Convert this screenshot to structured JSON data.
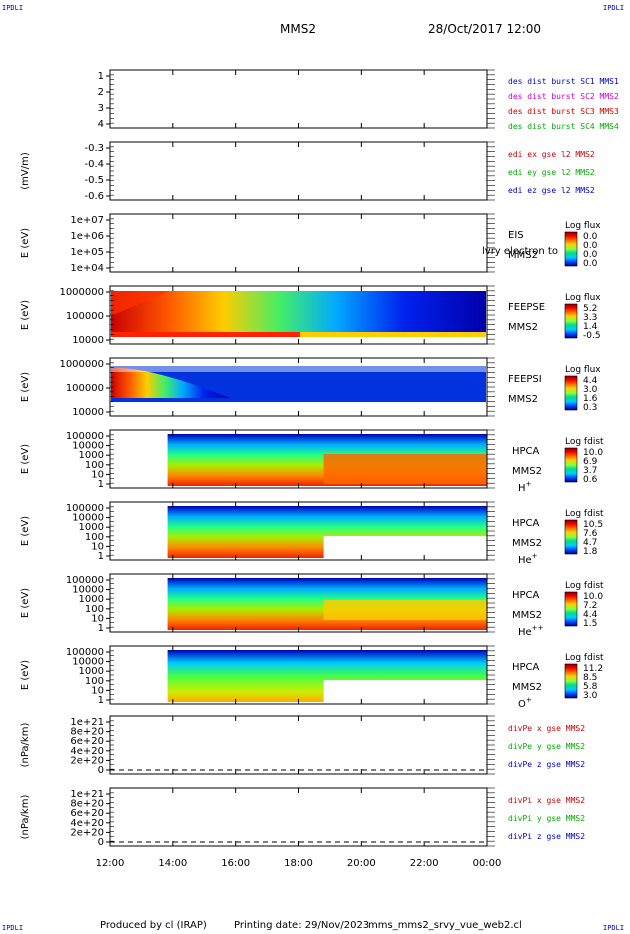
{
  "header": {
    "corner_tag": "IPDLI",
    "spacecraft": "MMS2",
    "datetime": "28/Oct/2017 12:00"
  },
  "footer": {
    "produced": "Produced by cl (IRAP)",
    "printing": "Printing date: 29/Nov/2023",
    "file": "mms_mms2_srvy_vue_web2.cl"
  },
  "chart_data": {
    "type": "heatmap",
    "x_ticks": [
      "12:00",
      "14:00",
      "16:00",
      "18:00",
      "20:00",
      "22:00",
      "00:00"
    ],
    "x_range": [
      "12:00",
      "00:00"
    ],
    "data_start": "13:50",
    "panels": [
      {
        "id": "burst",
        "type": "line",
        "ylabel": "",
        "yticks": [
          "1",
          "2",
          "3",
          "4"
        ],
        "ylim": [
          0.7,
          4.3
        ],
        "legend": [
          {
            "text": "des dist burst SC1 MMS1",
            "color": "#0000cc"
          },
          {
            "text": "des dist burst SC2 MMS2",
            "color": "#cc00cc"
          },
          {
            "text": "des dist burst SC3 MMS3",
            "color": "#cc0000"
          },
          {
            "text": "des dist burst SC4 MMS4",
            "color": "#00aa00"
          }
        ]
      },
      {
        "id": "edi",
        "type": "line",
        "ylabel": "(mV/m)",
        "yticks": [
          "-0.3",
          "-0.4",
          "-0.5",
          "-0.6"
        ],
        "ylim": [
          -0.65,
          -0.28
        ],
        "legend": [
          {
            "text": "edi ex gse l2 MMS2",
            "color": "#cc0000"
          },
          {
            "text": "edi ey gse l2 MMS2",
            "color": "#00aa00"
          },
          {
            "text": "edi ez gse l2 MMS2",
            "color": "#0000cc"
          }
        ]
      },
      {
        "id": "eis",
        "type": "heatmap",
        "ylabel": "E (eV)",
        "yticks": [
          "1e+07",
          "1e+06",
          "1e+05",
          "1e+04"
        ],
        "instrument": "EIS",
        "spacecraft": "MMS2",
        "overlay": "lvry electron to",
        "colorbar": {
          "title": "Log flux",
          "labels": [
            "0.0",
            "0.0",
            "0.0",
            "0.0"
          ]
        }
      },
      {
        "id": "feepse",
        "type": "heatmap",
        "ylabel": "E (eV)",
        "yticks": [
          "1000000",
          "100000",
          "10000"
        ],
        "instrument": "FEEPSE",
        "spacecraft": "MMS2",
        "colorbar": {
          "title": "Log flux",
          "labels": [
            "5.2",
            "3.3",
            "1.4",
            "-0.5"
          ]
        }
      },
      {
        "id": "feepsi",
        "type": "heatmap",
        "ylabel": "E (eV)",
        "yticks": [
          "1000000",
          "100000",
          "10000"
        ],
        "instrument": "FEEPSI",
        "spacecraft": "MMS2",
        "colorbar": {
          "title": "Log flux",
          "labels": [
            "4.4",
            "3.0",
            "1.6",
            "0.3"
          ]
        }
      },
      {
        "id": "hpca_h",
        "type": "heatmap",
        "ylabel": "E (eV)",
        "yticks": [
          "100000",
          "10000",
          "1000",
          "100",
          "10",
          "1"
        ],
        "instrument": "HPCA",
        "spacecraft": "MMS2",
        "species": "H",
        "charge": "+",
        "colorbar": {
          "title": "Log fdist",
          "labels": [
            "10.0",
            "6.9",
            "3.7",
            "0.6"
          ]
        }
      },
      {
        "id": "hpca_he",
        "type": "heatmap",
        "ylabel": "E (eV)",
        "yticks": [
          "100000",
          "10000",
          "1000",
          "100",
          "10",
          "1"
        ],
        "instrument": "HPCA",
        "spacecraft": "MMS2",
        "species": "He",
        "charge": "+",
        "colorbar": {
          "title": "Log fdist",
          "labels": [
            "10.5",
            "7.6",
            "4.7",
            "1.8"
          ]
        }
      },
      {
        "id": "hpca_he2",
        "type": "heatmap",
        "ylabel": "E (eV)",
        "yticks": [
          "100000",
          "10000",
          "1000",
          "100",
          "10",
          "1"
        ],
        "instrument": "HPCA",
        "spacecraft": "MMS2",
        "species": "He",
        "charge": "++",
        "colorbar": {
          "title": "Log fdist",
          "labels": [
            "10.0",
            "7.2",
            "4.4",
            "1.5"
          ]
        }
      },
      {
        "id": "hpca_o",
        "type": "heatmap",
        "ylabel": "E (eV)",
        "yticks": [
          "100000",
          "10000",
          "1000",
          "100",
          "10",
          "1"
        ],
        "instrument": "HPCA",
        "spacecraft": "MMS2",
        "species": "O",
        "charge": "+",
        "colorbar": {
          "title": "Log fdist",
          "labels": [
            "11.2",
            "8.5",
            "5.8",
            "3.0"
          ]
        }
      },
      {
        "id": "divpe",
        "type": "line",
        "ylabel": "(nPa/km)",
        "yticks": [
          "1e+21",
          "8e+20",
          "6e+20",
          "4e+20",
          "2e+20",
          "0"
        ],
        "ylim": [
          -1e+20,
          1.05e+21
        ],
        "legend": [
          {
            "text": "divPe x gse MMS2",
            "color": "#cc0000"
          },
          {
            "text": "divPe y gse MMS2",
            "color": "#00aa00"
          },
          {
            "text": "divPe z gse MMS2",
            "color": "#0000cc"
          }
        ]
      },
      {
        "id": "divpi",
        "type": "line",
        "ylabel": "(nPa/km)",
        "yticks": [
          "1e+21",
          "8e+20",
          "6e+20",
          "4e+20",
          "2e+20",
          "0"
        ],
        "ylim": [
          -1e+20,
          1.05e+21
        ],
        "legend": [
          {
            "text": "divPi x gse MMS2",
            "color": "#cc0000"
          },
          {
            "text": "divPi y gse MMS2",
            "color": "#00aa00"
          },
          {
            "text": "divPi z gse MMS2",
            "color": "#0000cc"
          }
        ]
      }
    ]
  }
}
